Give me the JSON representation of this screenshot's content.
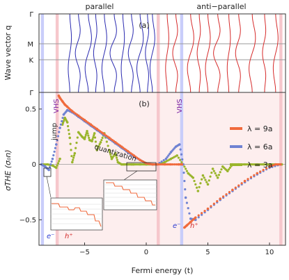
{
  "colors": {
    "lambda9": "#f06a3c",
    "lambda6": "#6f82d2",
    "lambda3": "#9ab52c",
    "parallel_lines": "#2a2ab0",
    "antiparallel_lines": "#d62a2a",
    "electron_band": "#c9cdfa",
    "hole_band": "#f6c7cc",
    "hole_shade": "#fdeeee",
    "vhs_text": "#7a1fa0",
    "e_text": "#2a3ad0",
    "h_text": "#d22828"
  },
  "chart_data": [
    {
      "panel_label": "(a)",
      "type": "line",
      "ylabel": "Wave vector q",
      "yticks": [
        "Γ",
        "M",
        "K",
        "Γ"
      ],
      "headers": [
        "parallel",
        "anti−parallel"
      ],
      "xlim": [
        -8.7,
        11.3
      ],
      "shaded_bands": {
        "electron": [
          [
            -8.55,
            -8.3
          ],
          [
            2.75,
            3.0
          ]
        ],
        "hole": [
          [
            -7.35,
            -7.1
          ],
          [
            0.85,
            1.1
          ],
          [
            10.8,
            11.05
          ]
        ]
      },
      "parallel_crossings": [
        -6.2,
        -5.5,
        -4.7,
        -4.1,
        -3.4,
        -2.6,
        -1.9,
        -1.2,
        -0.5,
        0.1,
        0.5
      ],
      "antiparallel_crossings": [
        1.7,
        2.4,
        3.6,
        4.3,
        5.0,
        5.8,
        6.7,
        7.5,
        8.6,
        9.6,
        10.5
      ]
    },
    {
      "panel_label": "(b)",
      "type": "scatter",
      "xlabel": "Fermi energy (t)",
      "ylabel": "σTHE (σ₀n)",
      "xlim": [
        -8.7,
        11.3
      ],
      "ylim": [
        -0.73,
        0.65
      ],
      "xticks": [
        -5,
        0,
        5,
        10
      ],
      "yticks": [
        -0.5,
        0,
        0.5
      ],
      "legend": "top-right",
      "annotations": {
        "vhs": "VHS",
        "jump": "jump",
        "quantization": "quantization",
        "electron": "e⁻",
        "hole": "h⁺"
      },
      "series": [
        {
          "name": "λ = 9a",
          "color_key": "lambda9",
          "x": [
            -7.1,
            -7.0,
            -6.8,
            -6.6,
            -6.4,
            -6.0,
            -5.5,
            -5.0,
            -4.5,
            -4.0,
            -3.5,
            -3.0,
            -2.5,
            -2.0,
            -1.5,
            -1.0,
            -0.5,
            0.0,
            0.5,
            0.9,
            1.5,
            2.0,
            2.6,
            2.9,
            3.1,
            3.3,
            3.6,
            4.0,
            5.0,
            6.0,
            7.0,
            8.0,
            9.0,
            10.0,
            10.5,
            10.9
          ],
          "y": [
            0.62,
            0.6,
            0.57,
            0.54,
            0.52,
            0.48,
            0.44,
            0.4,
            0.36,
            0.32,
            0.28,
            0.24,
            0.2,
            0.16,
            0.12,
            0.08,
            0.04,
            0.01,
            0.0,
            0.0,
            0.0,
            0.0,
            0.0,
            0.0,
            -0.57,
            -0.55,
            -0.52,
            -0.48,
            -0.4,
            -0.31,
            -0.23,
            -0.15,
            -0.08,
            -0.02,
            0.0,
            0.0
          ]
        },
        {
          "name": "λ = 6a",
          "color_key": "lambda6",
          "x": [
            -8.5,
            -8.2,
            -7.9,
            -7.6,
            -7.3,
            -7.0,
            -6.7,
            -6.4,
            -6.0,
            -5.5,
            -5.0,
            -4.5,
            -4.0,
            -3.5,
            -3.0,
            -2.5,
            -2.0,
            -1.5,
            -1.0,
            -0.5,
            0.0,
            0.5,
            0.9,
            1.6,
            2.0,
            2.4,
            2.7,
            3.0,
            3.2,
            3.6,
            4.0,
            5.0,
            6.0,
            7.0,
            8.0,
            9.0,
            10.0,
            10.9
          ],
          "y": [
            0.0,
            -0.02,
            -0.05,
            0.05,
            0.18,
            0.33,
            0.45,
            0.49,
            0.47,
            0.43,
            0.39,
            0.35,
            0.31,
            0.27,
            0.23,
            0.19,
            0.15,
            0.11,
            0.07,
            0.04,
            0.01,
            0.0,
            0.0,
            0.05,
            0.11,
            0.16,
            0.18,
            0.0,
            -0.3,
            -0.49,
            -0.5,
            -0.41,
            -0.32,
            -0.24,
            -0.16,
            -0.09,
            -0.03,
            0.0
          ]
        },
        {
          "name": "λ = 3a",
          "color_key": "lambda3",
          "x": [
            -8.5,
            -8.0,
            -7.6,
            -7.3,
            -7.0,
            -6.8,
            -6.6,
            -6.4,
            -6.2,
            -6.0,
            -5.8,
            -5.5,
            -5.2,
            -5.0,
            -4.8,
            -4.6,
            -4.4,
            -4.2,
            -4.0,
            -3.7,
            -3.4,
            -3.0,
            -2.8,
            -2.5,
            -2.3,
            -2.0,
            -1.8,
            -1.5,
            -1.2,
            -1.0,
            -0.5,
            0.0,
            0.5,
            0.9,
            1.5,
            2.0,
            2.5,
            3.0,
            3.4,
            3.8,
            4.2,
            4.6,
            5.0,
            5.4,
            5.8,
            6.2,
            6.6,
            7.0,
            7.5,
            8.0,
            8.5,
            9.0,
            9.5,
            10.0,
            10.5,
            11.0
          ],
          "y": [
            0.0,
            0.0,
            -0.01,
            -0.03,
            0.05,
            0.36,
            0.42,
            0.38,
            0.24,
            0.02,
            0.1,
            0.29,
            0.25,
            0.23,
            0.3,
            0.22,
            0.21,
            0.28,
            0.13,
            0.2,
            0.28,
            0.13,
            0.05,
            0.1,
            0.02,
            0.0,
            0.0,
            0.0,
            0.0,
            0.0,
            0.0,
            0.0,
            0.0,
            0.0,
            0.02,
            0.05,
            0.08,
            0.0,
            -0.08,
            -0.12,
            -0.24,
            -0.1,
            -0.18,
            -0.04,
            -0.12,
            -0.02,
            -0.06,
            0.0,
            0.0,
            0.0,
            0.0,
            0.0,
            0.0,
            0.0,
            0.0,
            0.0
          ]
        }
      ]
    }
  ]
}
